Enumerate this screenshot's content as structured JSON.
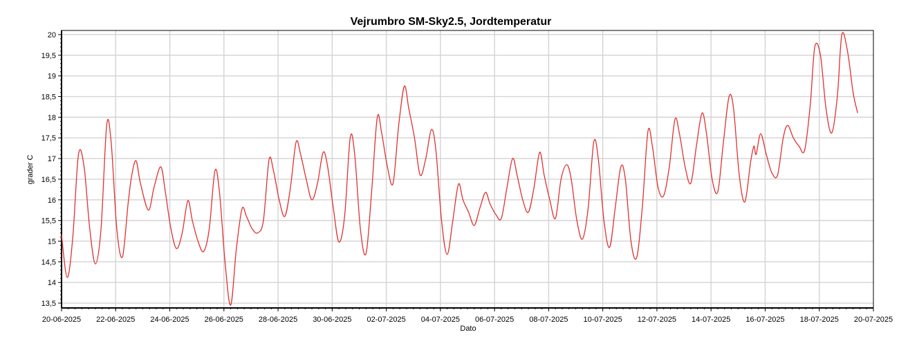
{
  "chart_data": {
    "type": "line",
    "title": "Vejrumbro SM-Sky2.5, Jordtemperatur",
    "xlabel": "Dato",
    "ylabel": "grader C",
    "x_range": [
      "20-06-2025",
      "20-07-2025"
    ],
    "ylim": [
      13.45,
      20.05
    ],
    "grid": true,
    "x_ticks": [
      "20-06-2025",
      "22-06-2025",
      "24-06-2025",
      "26-06-2025",
      "28-06-2025",
      "30-06-2025",
      "02-07-2025",
      "04-07-2025",
      "06-07-2025",
      "08-07-2025",
      "10-07-2025",
      "12-07-2025",
      "14-07-2025",
      "16-07-2025",
      "18-07-2025",
      "20-07-2025"
    ],
    "y_ticks": [
      "13,5",
      "14",
      "14,5",
      "15",
      "15,5",
      "16",
      "16,5",
      "17",
      "17,5",
      "18",
      "18,5",
      "19",
      "19,5",
      "20"
    ],
    "series": [
      {
        "color": "#e03030",
        "points": [
          [
            "20-06-2025 00:00",
            15.15
          ],
          [
            "20-06-2025 05:00",
            14.12
          ],
          [
            "20-06-2025 10:00",
            15.1
          ],
          [
            "20-06-2025 15:00",
            17.1
          ],
          [
            "20-06-2025 20:00",
            16.8
          ],
          [
            "21-06-2025 01:00",
            15.3
          ],
          [
            "21-06-2025 06:00",
            14.45
          ],
          [
            "21-06-2025 11:00",
            15.3
          ],
          [
            "21-06-2025 16:00",
            17.8
          ],
          [
            "21-06-2025 20:00",
            17.4
          ],
          [
            "22-06-2025 01:00",
            15.3
          ],
          [
            "22-06-2025 06:00",
            14.62
          ],
          [
            "22-06-2025 11:00",
            15.9
          ],
          [
            "22-06-2025 14:00",
            16.55
          ],
          [
            "22-06-2025 18:00",
            16.95
          ],
          [
            "22-06-2025 22:00",
            16.4
          ],
          [
            "23-06-2025 05:00",
            15.75
          ],
          [
            "23-06-2025 10:00",
            16.3
          ],
          [
            "23-06-2025 16:00",
            16.8
          ],
          [
            "23-06-2025 20:00",
            16.2
          ],
          [
            "24-06-2025 01:00",
            15.3
          ],
          [
            "24-06-2025 06:00",
            14.82
          ],
          [
            "24-06-2025 11:00",
            15.2
          ],
          [
            "24-06-2025 16:00",
            15.98
          ],
          [
            "24-06-2025 20:00",
            15.5
          ],
          [
            "25-06-2025 01:00",
            15.0
          ],
          [
            "25-06-2025 06:00",
            14.75
          ],
          [
            "25-06-2025 11:00",
            15.3
          ],
          [
            "25-06-2025 16:00",
            16.7
          ],
          [
            "25-06-2025 20:00",
            16.2
          ],
          [
            "26-06-2025 01:00",
            14.5
          ],
          [
            "26-06-2025 06:00",
            13.45
          ],
          [
            "26-06-2025 11:00",
            14.8
          ],
          [
            "26-06-2025 16:00",
            15.78
          ],
          [
            "26-06-2025 20:00",
            15.6
          ],
          [
            "27-06-2025 01:00",
            15.3
          ],
          [
            "27-06-2025 06:00",
            15.2
          ],
          [
            "27-06-2025 11:00",
            15.5
          ],
          [
            "27-06-2025 16:00",
            16.97
          ],
          [
            "27-06-2025 20:00",
            16.7
          ],
          [
            "28-06-2025 01:00",
            16.0
          ],
          [
            "28-06-2025 06:00",
            15.6
          ],
          [
            "28-06-2025 11:00",
            16.3
          ],
          [
            "28-06-2025 16:00",
            17.4
          ],
          [
            "28-06-2025 20:00",
            17.1
          ],
          [
            "29-06-2025 01:00",
            16.5
          ],
          [
            "29-06-2025 06:00",
            16.0
          ],
          [
            "29-06-2025 11:00",
            16.4
          ],
          [
            "29-06-2025 16:00",
            17.15
          ],
          [
            "29-06-2025 20:00",
            16.8
          ],
          [
            "30-06-2025 01:00",
            15.8
          ],
          [
            "30-06-2025 06:00",
            14.98
          ],
          [
            "30-06-2025 11:00",
            15.6
          ],
          [
            "30-06-2025 16:00",
            17.5
          ],
          [
            "30-06-2025 20:00",
            17.1
          ],
          [
            "01-07-2025 01:00",
            15.3
          ],
          [
            "01-07-2025 06:00",
            14.7
          ],
          [
            "01-07-2025 11:00",
            16.2
          ],
          [
            "01-07-2025 16:00",
            18.0
          ],
          [
            "01-07-2025 20:00",
            17.6
          ],
          [
            "02-07-2025 01:00",
            16.8
          ],
          [
            "02-07-2025 06:00",
            16.4
          ],
          [
            "02-07-2025 11:00",
            17.8
          ],
          [
            "02-07-2025 16:00",
            18.75
          ],
          [
            "02-07-2025 20:00",
            18.2
          ],
          [
            "03-07-2025 01:00",
            17.5
          ],
          [
            "03-07-2025 06:00",
            16.6
          ],
          [
            "03-07-2025 11:00",
            17.0
          ],
          [
            "03-07-2025 16:00",
            17.7
          ],
          [
            "03-07-2025 20:00",
            17.2
          ],
          [
            "04-07-2025 01:00",
            15.5
          ],
          [
            "04-07-2025 06:00",
            14.68
          ],
          [
            "04-07-2025 11:00",
            15.5
          ],
          [
            "04-07-2025 16:00",
            16.38
          ],
          [
            "04-07-2025 20:00",
            16.0
          ],
          [
            "05-07-2025 01:00",
            15.7
          ],
          [
            "05-07-2025 06:00",
            15.38
          ],
          [
            "05-07-2025 11:00",
            15.8
          ],
          [
            "05-07-2025 16:00",
            16.18
          ],
          [
            "05-07-2025 20:00",
            15.9
          ],
          [
            "06-07-2025 01:00",
            15.65
          ],
          [
            "06-07-2025 06:00",
            15.55
          ],
          [
            "06-07-2025 11:00",
            16.3
          ],
          [
            "06-07-2025 16:00",
            17.0
          ],
          [
            "06-07-2025 20:00",
            16.6
          ],
          [
            "07-07-2025 01:00",
            16.0
          ],
          [
            "07-07-2025 06:00",
            15.7
          ],
          [
            "07-07-2025 11:00",
            16.3
          ],
          [
            "07-07-2025 16:00",
            17.15
          ],
          [
            "07-07-2025 20:00",
            16.6
          ],
          [
            "08-07-2025 01:00",
            16.0
          ],
          [
            "08-07-2025 06:00",
            15.55
          ],
          [
            "08-07-2025 11:00",
            16.5
          ],
          [
            "08-07-2025 16:00",
            16.85
          ],
          [
            "08-07-2025 20:00",
            16.5
          ],
          [
            "09-07-2025 01:00",
            15.5
          ],
          [
            "09-07-2025 06:00",
            15.05
          ],
          [
            "09-07-2025 11:00",
            15.8
          ],
          [
            "09-07-2025 16:00",
            17.4
          ],
          [
            "09-07-2025 20:00",
            17.0
          ],
          [
            "10-07-2025 01:00",
            15.5
          ],
          [
            "10-07-2025 06:00",
            14.85
          ],
          [
            "10-07-2025 11:00",
            15.8
          ],
          [
            "10-07-2025 16:00",
            16.8
          ],
          [
            "10-07-2025 20:00",
            16.5
          ],
          [
            "11-07-2025 01:00",
            15.0
          ],
          [
            "11-07-2025 06:00",
            14.6
          ],
          [
            "11-07-2025 11:00",
            15.8
          ],
          [
            "11-07-2025 16:00",
            17.65
          ],
          [
            "11-07-2025 20:00",
            17.3
          ],
          [
            "12-07-2025 01:00",
            16.3
          ],
          [
            "12-07-2025 06:00",
            16.1
          ],
          [
            "12-07-2025 11:00",
            16.8
          ],
          [
            "12-07-2025 16:00",
            17.95
          ],
          [
            "12-07-2025 20:00",
            17.6
          ],
          [
            "13-07-2025 01:00",
            16.8
          ],
          [
            "13-07-2025 06:00",
            16.4
          ],
          [
            "13-07-2025 11:00",
            17.3
          ],
          [
            "13-07-2025 16:00",
            18.1
          ],
          [
            "13-07-2025 20:00",
            17.6
          ],
          [
            "14-07-2025 01:00",
            16.5
          ],
          [
            "14-07-2025 06:00",
            16.2
          ],
          [
            "14-07-2025 11:00",
            17.4
          ],
          [
            "14-07-2025 16:00",
            18.5
          ],
          [
            "14-07-2025 20:00",
            18.2
          ],
          [
            "15-07-2025 01:00",
            16.6
          ],
          [
            "15-07-2025 06:00",
            15.95
          ],
          [
            "15-07-2025 11:00",
            16.9
          ],
          [
            "15-07-2025 14:00",
            17.3
          ],
          [
            "15-07-2025 16:00",
            17.1
          ],
          [
            "15-07-2025 20:00",
            17.6
          ],
          [
            "16-07-2025 01:00",
            17.1
          ],
          [
            "16-07-2025 06:00",
            16.65
          ],
          [
            "16-07-2025 11:00",
            16.6
          ],
          [
            "16-07-2025 16:00",
            17.5
          ],
          [
            "16-07-2025 20:00",
            17.8
          ],
          [
            "17-07-2025 01:00",
            17.5
          ],
          [
            "17-07-2025 06:00",
            17.3
          ],
          [
            "17-07-2025 11:00",
            17.2
          ],
          [
            "17-07-2025 16:00",
            18.3
          ],
          [
            "17-07-2025 20:00",
            19.7
          ],
          [
            "18-07-2025 01:00",
            19.5
          ],
          [
            "18-07-2025 06:00",
            18.2
          ],
          [
            "18-07-2025 11:00",
            17.62
          ],
          [
            "18-07-2025 16:00",
            18.5
          ],
          [
            "18-07-2025 20:00",
            20.0
          ],
          [
            "19-07-2025 01:00",
            19.6
          ],
          [
            "19-07-2025 06:00",
            18.6
          ],
          [
            "19-07-2025 10:00",
            18.1
          ]
        ]
      }
    ]
  }
}
